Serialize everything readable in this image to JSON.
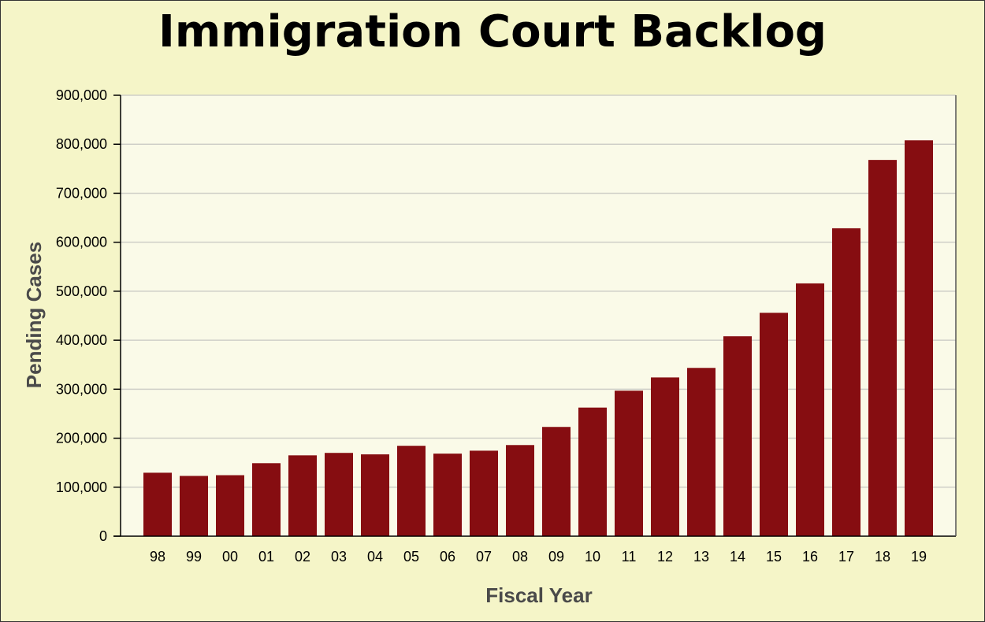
{
  "chart_data": {
    "type": "bar",
    "title": "Immigration Court Backlog",
    "xlabel": "Fiscal Year",
    "ylabel": "Pending Cases",
    "categories": [
      "98",
      "99",
      "00",
      "01",
      "02",
      "03",
      "04",
      "05",
      "06",
      "07",
      "08",
      "09",
      "10",
      "11",
      "12",
      "13",
      "14",
      "15",
      "16",
      "17",
      "18",
      "19"
    ],
    "values": [
      129500,
      123000,
      124500,
      149000,
      165000,
      170000,
      167000,
      184500,
      168500,
      174500,
      186000,
      223000,
      262500,
      297000,
      324000,
      343500,
      408000,
      456000,
      516000,
      628500,
      768000,
      808000
    ],
    "ylim": [
      0,
      900000
    ],
    "yticks": [
      {
        "value": 0,
        "label": "0"
      },
      {
        "value": 100000,
        "label": "100,000"
      },
      {
        "value": 200000,
        "label": "200,000"
      },
      {
        "value": 300000,
        "label": "300,000"
      },
      {
        "value": 400000,
        "label": "400,000"
      },
      {
        "value": 500000,
        "label": "500,000"
      },
      {
        "value": 600000,
        "label": "600,000"
      },
      {
        "value": 700000,
        "label": "700,000"
      },
      {
        "value": 800000,
        "label": "800,000"
      },
      {
        "value": 900000,
        "label": "900,000"
      }
    ],
    "grid": true,
    "legend": "none",
    "colors": {
      "bar": "#860d11",
      "plot_background": "#fafae8",
      "page_background": "#f5f5c8",
      "gridline": "#cfcfc8"
    }
  }
}
